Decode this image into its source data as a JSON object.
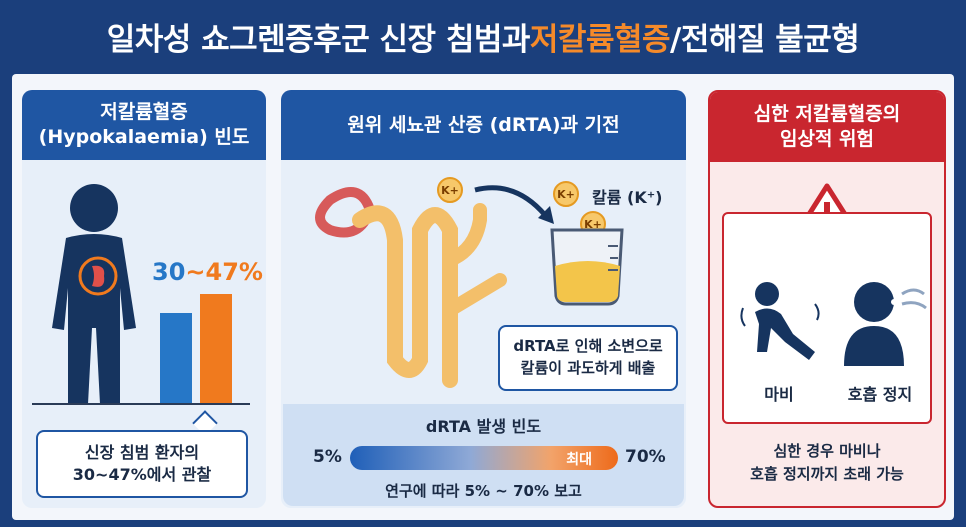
{
  "header": {
    "title_main": "일차성 쇼그렌증후군 신장 침범과 ",
    "title_accent": "저칼륨혈증",
    "title_rest": "/전해질 불균형"
  },
  "panel_frequency": {
    "heading_line1": "저칼륨혈증",
    "heading_line2": "(Hypokalaemia) 빈도",
    "range_low": "30",
    "range_sep": "~",
    "range_high": "47%",
    "callout_line1": "신장 침범 환자의",
    "callout_line2": "30~47%에서 관찰",
    "bar_low_pct": 30,
    "bar_high_pct": 47
  },
  "panel_drta": {
    "heading": "원위 세뇨관 산증 (dRTA)과 기전",
    "k_badge": "K+",
    "k_label": "칼륨 (K⁺)",
    "callout_line1": "dRTA로 인해 소변으로",
    "callout_line2": "칼륨이 과도하게 배출",
    "frequency": {
      "title": "dRTA 발생 빈도",
      "min_label": "5%",
      "max_label": "70%",
      "bar_label": "최대",
      "note": "연구에 따라 5% ~ 70% 보고"
    }
  },
  "panel_risk": {
    "heading_line1": "심한 저칼륨혈증의",
    "heading_line2": "임상적 위험",
    "symptom_1": "마비",
    "symptom_2": "호흡 정지",
    "note_line1": "심한 경우 마비나",
    "note_line2": "호흡 정지까지 초래 가능"
  },
  "colors": {
    "navy": "#1b3f7c",
    "blue": "#2677c7",
    "orange": "#f07a1e",
    "red": "#c9262f"
  }
}
